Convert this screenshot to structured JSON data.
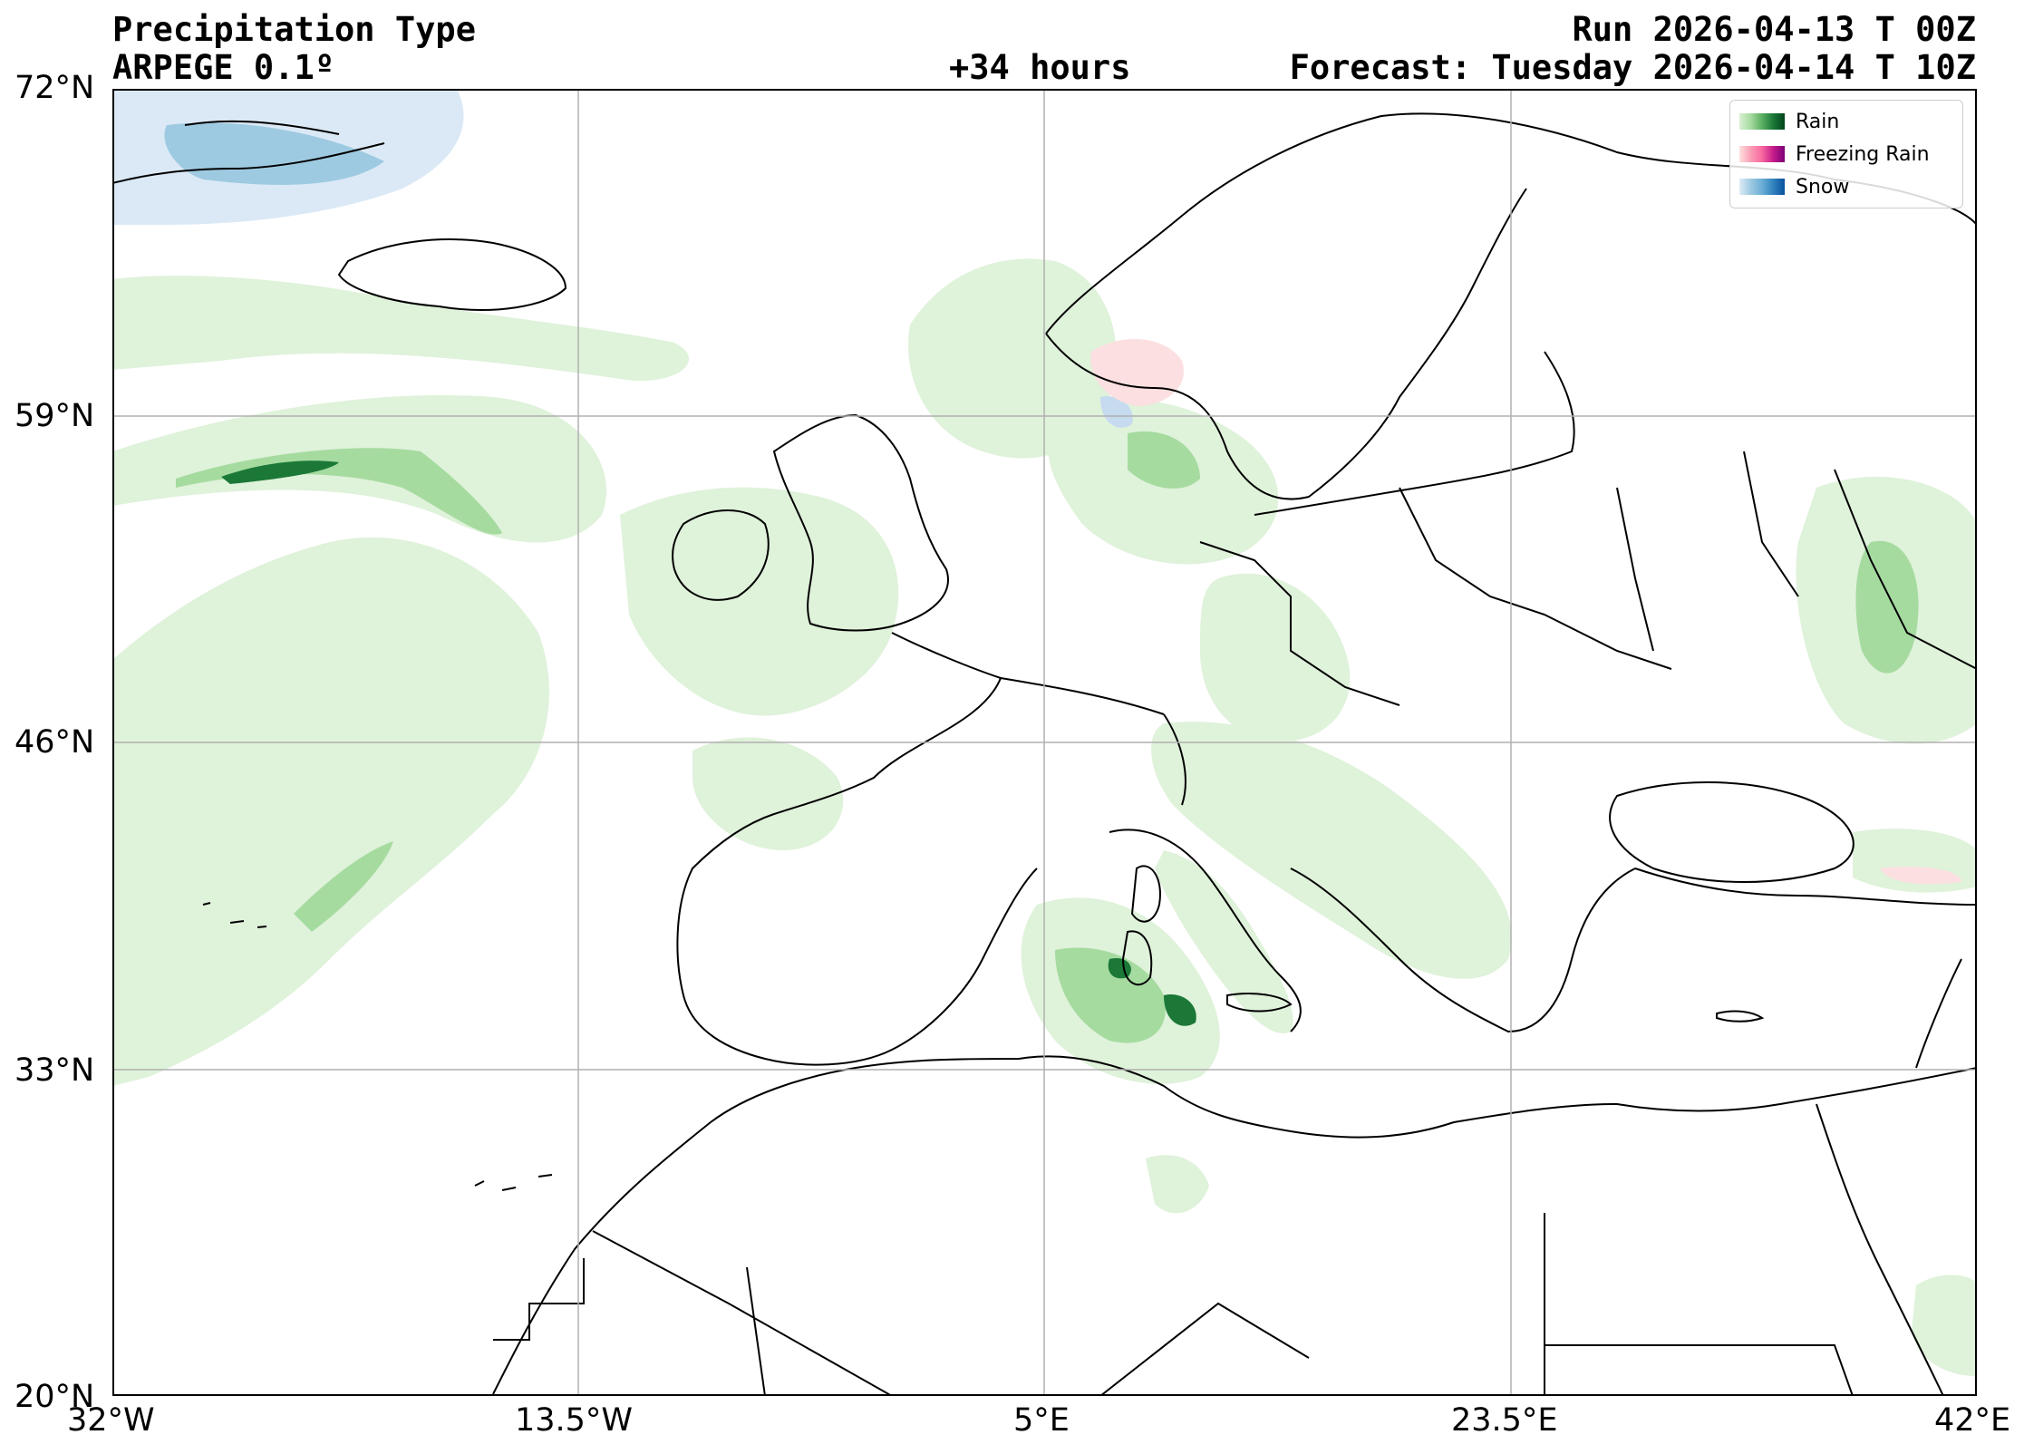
{
  "header": {
    "title": "Precipitation Type",
    "model": "ARPEGE 0.1º",
    "lead_time": "+34 hours",
    "run": "Run 2026-04-13 T 00Z",
    "forecast": "Forecast: Tuesday 2026-04-14 T 10Z"
  },
  "axes": {
    "lat_labels": [
      "72°N",
      "59°N",
      "46°N",
      "33°N",
      "20°N"
    ],
    "lon_labels": [
      "32°W",
      "13.5°W",
      "5°E",
      "23.5°E",
      "42°E"
    ]
  },
  "map": {
    "extent": {
      "lon_min": -32,
      "lon_max": 42,
      "lat_min": 20,
      "lat_max": 72
    },
    "gridlines": true,
    "lat_grid": [
      20,
      33,
      46,
      59,
      72
    ],
    "lon_grid": [
      -32,
      -13.5,
      5,
      23.5,
      42
    ]
  },
  "legend": {
    "placement": "top-right",
    "items": [
      {
        "label": "Rain",
        "colors": [
          "#d9f0d3",
          "#a6dba0",
          "#5aae61",
          "#1b7837",
          "#00441b"
        ]
      },
      {
        "label": "Freezing Rain",
        "colors": [
          "#fde0dd",
          "#fa9fb5",
          "#f768a1",
          "#c51b8a",
          "#7a0177"
        ]
      },
      {
        "label": "Snow",
        "colors": [
          "#deebf7",
          "#9ecae1",
          "#6baed6",
          "#3182bd",
          "#08519c"
        ]
      }
    ]
  },
  "colors": {
    "rain_light": "#dff2da",
    "rain_mid": "#a6dba0",
    "rain_dark": "#1b7837",
    "snow_light": "#dbe9f6",
    "snow_dark": "#2171b5",
    "freezing_light": "#fcdfe0",
    "coast": "#000000",
    "grid": "#b0b0b0"
  }
}
